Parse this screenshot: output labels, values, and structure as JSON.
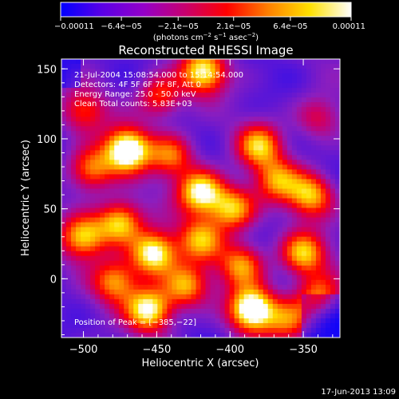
{
  "chart_data": {
    "type": "heatmap",
    "title": "Reconstructed RHESSI Image",
    "xlabel": "Heliocentric X (arcsec)",
    "ylabel": "Heliocentric Y (arcsec)",
    "xlim": [
      -515,
      -325
    ],
    "ylim": [
      -42,
      157
    ],
    "x_ticks": [
      -500,
      -450,
      -400,
      -350
    ],
    "x_tick_labels": [
      "−500",
      "−450",
      "−400",
      "−350"
    ],
    "y_ticks": [
      0,
      50,
      100,
      150
    ],
    "y_tick_labels": [
      "0",
      "50",
      "100",
      "150"
    ],
    "colorbar": {
      "range": [
        -0.00011,
        0.00011
      ],
      "tick_values": [
        -0.00011,
        -6.4e-05,
        -2.1e-05,
        2.1e-05,
        6.4e-05,
        0.00011
      ],
      "tick_labels": [
        "−0.00011",
        "−6.4e−05",
        "−2.1e−05",
        "2.1e−05",
        "6.4e−05",
        "0.00011"
      ],
      "units_main": "(photons cm",
      "units_exp1": "−2",
      "units_mid": " s",
      "units_exp2": "−1",
      "units_tail": " asec",
      "units_exp3": "−2",
      "units_close": ")",
      "colors": [
        "#0000ff",
        "#5a00e6",
        "#9400c8",
        "#c8006e",
        "#ff0000",
        "#ff8000",
        "#ffe000",
        "#ffffff"
      ]
    },
    "annotations": {
      "time_range": "21-Jul-2004 15:08:54.000 to 15:14:54.000",
      "detectors": "Detectors: 4F 5F 6F 7F 8F, Att 0",
      "energy_range": "Energy Range: 25.0 - 50.0 keV",
      "clean_counts": "Clean     Total counts: 5.83E+03",
      "peak_position": "Position of Peak = [−385,−22]"
    },
    "sources": [
      {
        "x": -470,
        "y": 92,
        "amp": 1.0
      },
      {
        "x": -495,
        "y": 78,
        "amp": 0.6
      },
      {
        "x": -440,
        "y": 88,
        "amp": 0.55
      },
      {
        "x": -420,
        "y": 62,
        "amp": 0.85
      },
      {
        "x": -398,
        "y": 50,
        "amp": 0.7
      },
      {
        "x": -380,
        "y": 95,
        "amp": 0.65
      },
      {
        "x": -368,
        "y": 70,
        "amp": 0.55
      },
      {
        "x": -345,
        "y": 60,
        "amp": 0.65
      },
      {
        "x": -475,
        "y": 40,
        "amp": 0.75
      },
      {
        "x": -500,
        "y": 30,
        "amp": 0.7
      },
      {
        "x": -452,
        "y": 18,
        "amp": 0.9
      },
      {
        "x": -478,
        "y": -2,
        "amp": 0.6
      },
      {
        "x": -455,
        "y": -22,
        "amp": 0.85
      },
      {
        "x": -420,
        "y": 28,
        "amp": 0.6
      },
      {
        "x": -430,
        "y": -5,
        "amp": 0.65
      },
      {
        "x": -385,
        "y": -22,
        "amp": 1.0
      },
      {
        "x": -392,
        "y": 10,
        "amp": 0.6
      },
      {
        "x": -350,
        "y": 18,
        "amp": 0.7
      },
      {
        "x": -340,
        "y": -12,
        "amp": 0.55
      },
      {
        "x": -360,
        "y": -30,
        "amp": 0.5
      },
      {
        "x": -418,
        "y": 148,
        "amp": 0.8
      },
      {
        "x": -448,
        "y": 130,
        "amp": 0.5
      },
      {
        "x": -500,
        "y": 120,
        "amp": 0.45
      },
      {
        "x": -340,
        "y": 115,
        "amp": 0.35
      }
    ],
    "grid": false
  },
  "footer": {
    "timestamp": "17-Jun-2013 13:09"
  }
}
